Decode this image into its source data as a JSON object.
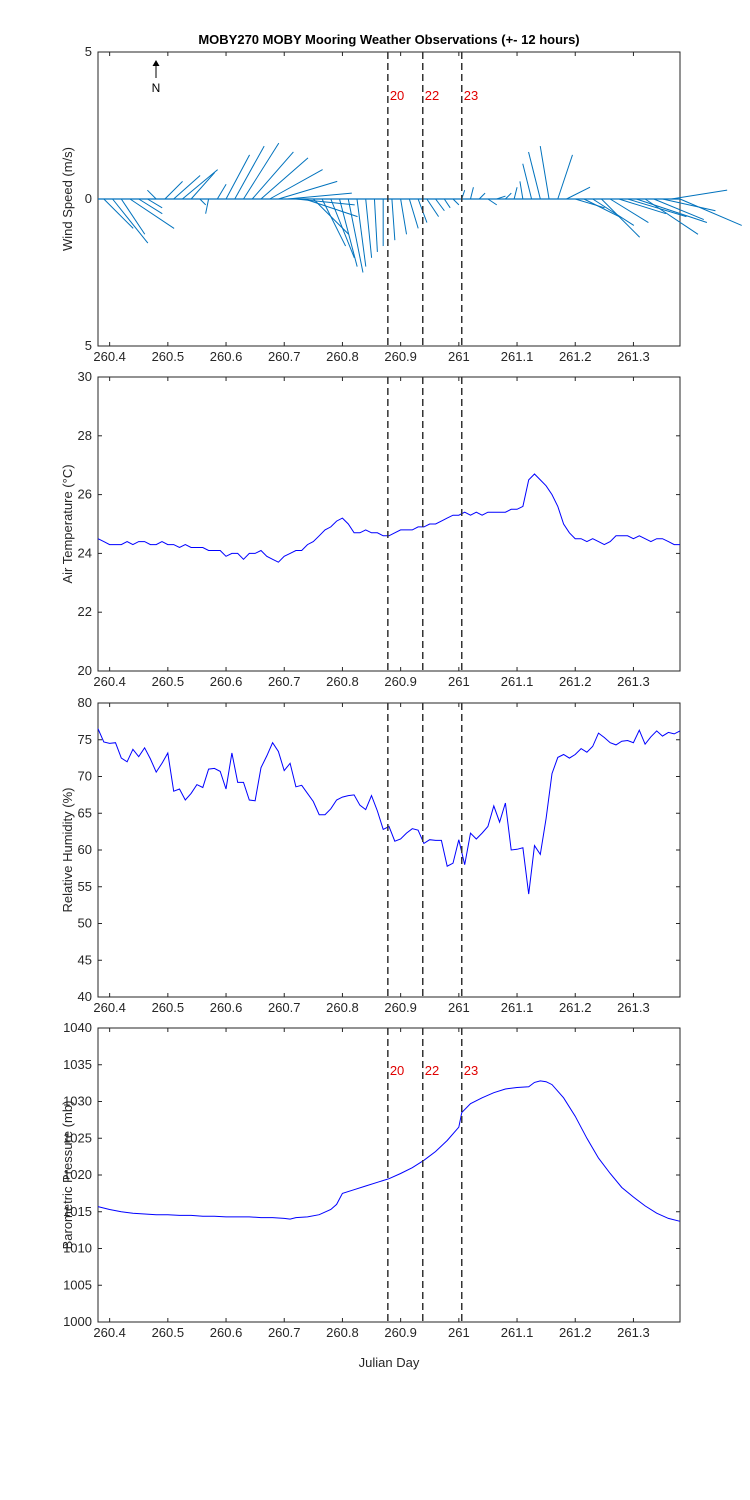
{
  "figure": {
    "title": "MOBY270 MOBY Mooring Weather Observations (+- 12 hours)"
  },
  "xaxis": {
    "range": [
      260.38,
      261.38
    ],
    "ticks": [
      260.4,
      260.5,
      260.6,
      260.7,
      260.8,
      260.9,
      261,
      261.1,
      261.2,
      261.3
    ],
    "tick_labels": [
      "260.4",
      "260.5",
      "260.6",
      "260.7",
      "260.8",
      "260.9",
      "261",
      "261.1",
      "261.2",
      "261.3"
    ],
    "label": "Julian Day"
  },
  "markers": {
    "positions": [
      260.878,
      260.938,
      261.005
    ],
    "labels": [
      "20",
      "22",
      "23"
    ],
    "label_color": "#e00000",
    "line_color": "#333333"
  },
  "colors": {
    "series_blue": "#0000ff",
    "wind_sticks": "#0072bd"
  },
  "north_indicator": "N",
  "chart_data": [
    {
      "type": "line",
      "name": "wind",
      "ylabel": "Wind Speed (m/s)",
      "ylim": [
        -5,
        5
      ],
      "yticks": [
        5,
        0,
        -5
      ],
      "ytick_labels": [
        "5",
        "0",
        "5"
      ],
      "note": "stick plot: each stick u (east) / v (north) components in m/s",
      "x": [
        260.39,
        260.405,
        260.42,
        260.435,
        260.45,
        260.465,
        260.48,
        260.495,
        260.51,
        260.525,
        260.54,
        260.555,
        260.57,
        260.585,
        260.6,
        260.615,
        260.63,
        260.645,
        260.66,
        260.675,
        260.69,
        260.705,
        260.72,
        260.735,
        260.75,
        260.765,
        260.78,
        260.795,
        260.81,
        260.825,
        260.84,
        260.855,
        260.87,
        260.885,
        260.9,
        260.915,
        260.93,
        260.945,
        260.96,
        260.975,
        260.99,
        261.005,
        261.02,
        261.035,
        261.05,
        261.065,
        261.08,
        261.095,
        261.11,
        261.125,
        261.14,
        261.155,
        261.17,
        261.185,
        261.2,
        261.215,
        261.23,
        261.245,
        261.26,
        261.275,
        261.29,
        261.305,
        261.32,
        261.335,
        261.35,
        261.365,
        261.38
      ],
      "u": [
        1,
        1.2,
        0.8,
        1.5,
        0.8,
        0.5,
        -0.3,
        0.6,
        0.9,
        1.2,
        0.8,
        0.2,
        -0.1,
        0.3,
        0.8,
        1.0,
        1.2,
        1.4,
        1.6,
        1.8,
        2.0,
        2.2,
        2.0,
        1.8,
        1.2,
        0.8,
        0.8,
        0.6,
        0.5,
        0.3,
        0.2,
        0.1,
        0.0,
        0.1,
        0.2,
        0.3,
        0.3,
        0.4,
        0.3,
        0.2,
        0.2,
        0.1,
        0.1,
        0.2,
        0.3,
        0.3,
        0.2,
        0.1,
        -0.1,
        -0.3,
        -0.4,
        -0.3,
        0.5,
        0.8,
        1.0,
        1.2,
        1.4,
        1.3,
        1.3,
        1.6,
        2.0,
        2.4,
        1.8,
        1.7,
        1.8,
        1.9,
        2.1
      ],
      "v": [
        -1.0,
        -1.5,
        -1.2,
        -1.0,
        -0.5,
        -0.3,
        0.3,
        0.6,
        0.8,
        1.0,
        0.9,
        -0.2,
        -0.5,
        0.5,
        1.5,
        1.8,
        1.9,
        1.6,
        1.4,
        1.0,
        0.6,
        0.2,
        -0.2,
        -0.6,
        -1.2,
        -1.6,
        -2.0,
        -2.3,
        -2.5,
        -2.3,
        -2.0,
        -1.8,
        -1.6,
        -1.4,
        -1.2,
        -1.0,
        -0.8,
        -0.6,
        -0.4,
        -0.3,
        -0.2,
        0.3,
        0.4,
        0.2,
        -0.2,
        0.1,
        0.2,
        0.4,
        0.6,
        1.2,
        1.6,
        1.8,
        1.5,
        0.4,
        -0.3,
        -0.6,
        -0.9,
        -1.3,
        -0.8,
        -0.5,
        -0.6,
        -0.8,
        -1.2,
        -0.7,
        -0.4,
        0.3,
        -0.9
      ]
    },
    {
      "type": "line",
      "name": "air_temperature",
      "ylabel": "Air Temperature (°C)",
      "ylim": [
        20,
        30
      ],
      "yticks": [
        20,
        22,
        24,
        26,
        28,
        30
      ],
      "ytick_labels": [
        "20",
        "22",
        "24",
        "26",
        "28",
        "30"
      ],
      "x": [
        260.38,
        260.39,
        260.4,
        260.41,
        260.42,
        260.43,
        260.44,
        260.45,
        260.46,
        260.47,
        260.48,
        260.49,
        260.5,
        260.51,
        260.52,
        260.53,
        260.54,
        260.55,
        260.56,
        260.57,
        260.58,
        260.59,
        260.6,
        260.61,
        260.62,
        260.63,
        260.64,
        260.65,
        260.66,
        260.67,
        260.68,
        260.69,
        260.7,
        260.71,
        260.72,
        260.73,
        260.74,
        260.75,
        260.76,
        260.77,
        260.78,
        260.79,
        260.8,
        260.81,
        260.82,
        260.83,
        260.84,
        260.85,
        260.86,
        260.87,
        260.88,
        260.89,
        260.9,
        260.91,
        260.92,
        260.93,
        260.94,
        260.95,
        260.96,
        260.97,
        260.98,
        260.99,
        261.0,
        261.01,
        261.02,
        261.03,
        261.04,
        261.05,
        261.06,
        261.07,
        261.08,
        261.09,
        261.1,
        261.11,
        261.12,
        261.13,
        261.14,
        261.15,
        261.16,
        261.17,
        261.18,
        261.19,
        261.2,
        261.21,
        261.22,
        261.23,
        261.24,
        261.25,
        261.26,
        261.27,
        261.28,
        261.29,
        261.3,
        261.31,
        261.32,
        261.33,
        261.34,
        261.35,
        261.36,
        261.37,
        261.38
      ],
      "y": [
        24.5,
        24.4,
        24.3,
        24.3,
        24.3,
        24.4,
        24.3,
        24.4,
        24.4,
        24.3,
        24.3,
        24.4,
        24.3,
        24.3,
        24.2,
        24.3,
        24.2,
        24.2,
        24.2,
        24.1,
        24.1,
        24.1,
        23.9,
        24.0,
        24.0,
        23.8,
        24.0,
        24.0,
        24.1,
        23.9,
        23.8,
        23.7,
        23.9,
        24.0,
        24.1,
        24.1,
        24.3,
        24.4,
        24.6,
        24.8,
        24.9,
        25.1,
        25.2,
        25.0,
        24.7,
        24.7,
        24.8,
        24.7,
        24.7,
        24.6,
        24.6,
        24.7,
        24.8,
        24.8,
        24.8,
        24.9,
        24.9,
        25.0,
        25.0,
        25.1,
        25.2,
        25.3,
        25.3,
        25.4,
        25.3,
        25.4,
        25.3,
        25.4,
        25.4,
        25.4,
        25.4,
        25.5,
        25.5,
        25.6,
        26.5,
        26.7,
        26.5,
        26.3,
        26.0,
        25.6,
        25.0,
        24.7,
        24.5,
        24.5,
        24.4,
        24.5,
        24.4,
        24.3,
        24.4,
        24.6,
        24.6,
        24.6,
        24.5,
        24.6,
        24.5,
        24.4,
        24.5,
        24.5,
        24.4,
        24.3,
        24.3
      ]
    },
    {
      "type": "line",
      "name": "relative_humidity",
      "ylabel": "Relative Humidity (%)",
      "ylim": [
        40,
        80
      ],
      "yticks": [
        40,
        45,
        50,
        55,
        60,
        65,
        70,
        75,
        80
      ],
      "ytick_labels": [
        "40",
        "45",
        "50",
        "55",
        "60",
        "65",
        "70",
        "75",
        "80"
      ],
      "x": [
        260.38,
        260.39,
        260.4,
        260.41,
        260.42,
        260.43,
        260.44,
        260.45,
        260.46,
        260.47,
        260.48,
        260.49,
        260.5,
        260.51,
        260.52,
        260.53,
        260.54,
        260.55,
        260.56,
        260.57,
        260.58,
        260.59,
        260.6,
        260.61,
        260.62,
        260.63,
        260.64,
        260.65,
        260.66,
        260.67,
        260.68,
        260.69,
        260.7,
        260.71,
        260.72,
        260.73,
        260.74,
        260.75,
        260.76,
        260.77,
        260.78,
        260.79,
        260.8,
        260.81,
        260.82,
        260.83,
        260.84,
        260.85,
        260.86,
        260.87,
        260.88,
        260.89,
        260.9,
        260.91,
        260.92,
        260.93,
        260.94,
        260.95,
        260.96,
        260.97,
        260.98,
        260.99,
        261.0,
        261.01,
        261.02,
        261.03,
        261.04,
        261.05,
        261.06,
        261.07,
        261.08,
        261.09,
        261.1,
        261.11,
        261.12,
        261.13,
        261.14,
        261.15,
        261.16,
        261.17,
        261.18,
        261.19,
        261.2,
        261.21,
        261.22,
        261.23,
        261.24,
        261.25,
        261.26,
        261.27,
        261.28,
        261.29,
        261.3,
        261.31,
        261.32,
        261.33,
        261.34,
        261.35,
        261.36,
        261.37,
        261.38
      ],
      "y": [
        76.5,
        74.7,
        74.5,
        74.6,
        72.5,
        72.0,
        73.7,
        72.7,
        73.9,
        72.4,
        70.6,
        71.8,
        73.2,
        68.0,
        68.3,
        66.8,
        67.7,
        68.9,
        68.5,
        71.0,
        71.1,
        70.7,
        68.3,
        73.2,
        69.2,
        69.2,
        66.8,
        66.7,
        71.2,
        72.8,
        74.6,
        73.4,
        70.8,
        71.8,
        68.6,
        68.8,
        67.7,
        66.6,
        64.8,
        64.8,
        65.6,
        66.8,
        67.2,
        67.4,
        67.5,
        66.1,
        65.5,
        67.4,
        65.3,
        62.8,
        63.2,
        61.2,
        61.5,
        62.3,
        62.9,
        62.7,
        60.9,
        61.4,
        61.3,
        61.3,
        57.8,
        58.2,
        61.4,
        58.0,
        62.3,
        61.5,
        62.3,
        63.2,
        66.0,
        63.8,
        66.4,
        60.0,
        60.1,
        60.3,
        54.0,
        60.6,
        59.4,
        64.3,
        70.4,
        72.6,
        73.0,
        72.5,
        73.0,
        73.8,
        73.3,
        74.1,
        75.9,
        75.3,
        74.6,
        74.3,
        74.8,
        74.9,
        74.6,
        76.3,
        74.4,
        75.4,
        76.2,
        75.5,
        76.0,
        75.8,
        76.2
      ]
    },
    {
      "type": "line",
      "name": "barometric_pressure",
      "ylabel": "Barometric Pressure (mb)",
      "ylim": [
        1000,
        1040
      ],
      "yticks": [
        1000,
        1005,
        1010,
        1015,
        1020,
        1025,
        1030,
        1035,
        1040
      ],
      "ytick_labels": [
        "1000",
        "1005",
        "1010",
        "1015",
        "1020",
        "1025",
        "1030",
        "1035",
        "1040"
      ],
      "x": [
        260.38,
        260.4,
        260.42,
        260.44,
        260.46,
        260.48,
        260.5,
        260.52,
        260.54,
        260.56,
        260.58,
        260.6,
        260.62,
        260.64,
        260.66,
        260.68,
        260.7,
        260.71,
        260.72,
        260.74,
        260.76,
        260.78,
        260.79,
        260.8,
        260.82,
        260.84,
        260.86,
        260.88,
        260.9,
        260.92,
        260.94,
        260.96,
        260.98,
        261.0,
        261.005,
        261.02,
        261.04,
        261.06,
        261.08,
        261.1,
        261.12,
        261.13,
        261.14,
        261.15,
        261.16,
        261.18,
        261.2,
        261.22,
        261.24,
        261.26,
        261.28,
        261.3,
        261.32,
        261.34,
        261.36,
        261.38
      ],
      "y": [
        1015.7,
        1015.3,
        1015.0,
        1014.8,
        1014.7,
        1014.6,
        1014.6,
        1014.5,
        1014.5,
        1014.4,
        1014.4,
        1014.3,
        1014.3,
        1014.3,
        1014.2,
        1014.2,
        1014.1,
        1014.0,
        1014.2,
        1014.3,
        1014.6,
        1015.3,
        1016.0,
        1017.5,
        1018.0,
        1018.5,
        1019.0,
        1019.5,
        1020.2,
        1021.0,
        1022.0,
        1023.2,
        1024.7,
        1026.5,
        1028.5,
        1029.7,
        1030.5,
        1031.2,
        1031.7,
        1031.9,
        1032.0,
        1032.6,
        1032.8,
        1032.7,
        1032.3,
        1030.5,
        1028.0,
        1025.0,
        1022.3,
        1020.2,
        1018.3,
        1017.0,
        1015.8,
        1014.8,
        1014.1,
        1013.7
      ]
    }
  ]
}
